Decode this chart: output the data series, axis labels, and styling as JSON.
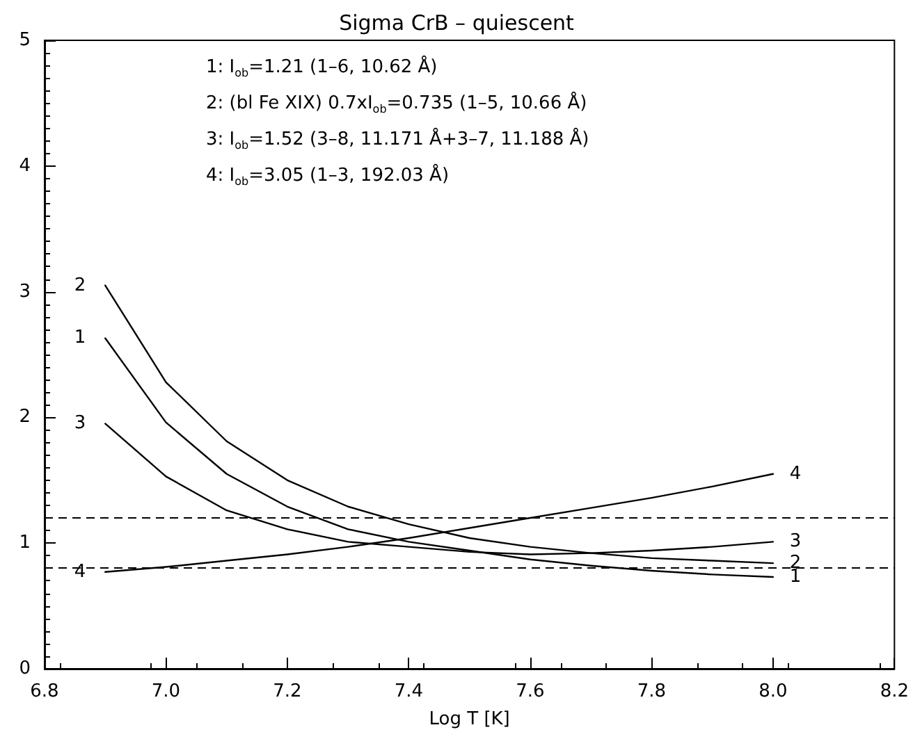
{
  "chart_data": {
    "type": "line",
    "title": "Sigma CrB – quiescent",
    "xlabel": "Log T [K]",
    "x": [
      6.9,
      7.0,
      7.1,
      7.2,
      7.3,
      7.4,
      7.5,
      7.6,
      7.7,
      7.8,
      7.9,
      8.0
    ],
    "series": [
      {
        "name": "1",
        "color": "#000000",
        "values": [
          2.63,
          1.96,
          1.55,
          1.29,
          1.11,
          1.01,
          0.94,
          0.87,
          0.82,
          0.78,
          0.75,
          0.73
        ]
      },
      {
        "name": "2",
        "color": "#000000",
        "values": [
          3.05,
          2.28,
          1.81,
          1.5,
          1.29,
          1.15,
          1.04,
          0.97,
          0.92,
          0.88,
          0.86,
          0.84
        ]
      },
      {
        "name": "3",
        "color": "#000000",
        "values": [
          1.95,
          1.53,
          1.26,
          1.11,
          1.01,
          0.97,
          0.93,
          0.91,
          0.92,
          0.94,
          0.97,
          1.01
        ]
      },
      {
        "name": "4",
        "color": "#000000",
        "values": [
          0.77,
          0.81,
          0.86,
          0.91,
          0.97,
          1.04,
          1.12,
          1.2,
          1.28,
          1.36,
          1.45,
          1.55
        ]
      }
    ],
    "xlim": [
      6.8,
      8.2
    ],
    "xticks": [
      6.8,
      {
        "value": 7.0,
        "label": "7.0"
      },
      7.2,
      7.4,
      7.6,
      7.8,
      {
        "value": 8.0,
        "label": "8.0"
      },
      8.2
    ],
    "ylim": [
      0,
      5
    ],
    "yticks": [
      0,
      1,
      2,
      3,
      4,
      5
    ],
    "ref_lines": [
      {
        "axis": "y",
        "value": 1.2,
        "color": "#000000",
        "line_style": "dashed"
      },
      {
        "axis": "y",
        "value": 0.8,
        "color": "#000000",
        "line_style": "dashed"
      }
    ],
    "annotations": [
      "1: I$_{ob}$=1.21 (1–6, 10.62 Å)",
      "2: (bl Fe XIX) 0.7xI$_{ob}$=0.735 (1–5, 10.66 Å)",
      "3: I$_{ob}$=1.52 (3–8, 11.171 Å+3–7, 11.188 Å)",
      "4: I$_{ob}$=3.05 (1–3, 192.03 Å)"
    ],
    "grid": false,
    "legend": false,
    "marker": "none",
    "line_style": "solid"
  }
}
